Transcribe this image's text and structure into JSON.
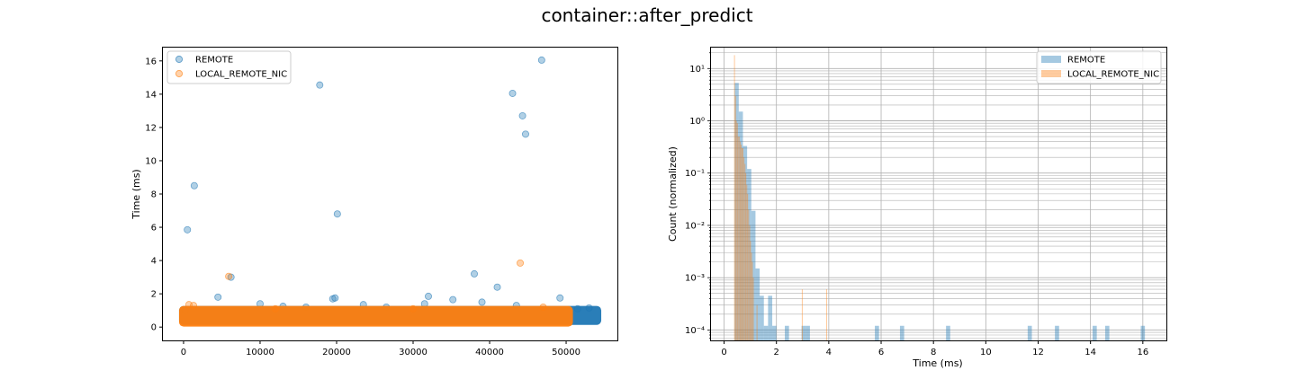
{
  "figure": {
    "suptitle": "container::after_predict"
  },
  "chart_data": [
    {
      "type": "scatter",
      "title": "",
      "xlabel": "",
      "ylabel": "Time (ms)",
      "xlim": [
        -2700,
        56700
      ],
      "ylim": [
        -0.8,
        16.8
      ],
      "xticks": [
        0,
        10000,
        20000,
        30000,
        40000,
        50000
      ],
      "xtick_labels": [
        "0",
        "10000",
        "20000",
        "30000",
        "40000",
        "50000"
      ],
      "yticks": [
        0,
        2,
        4,
        6,
        8,
        10,
        12,
        14,
        16
      ],
      "ytick_labels": [
        "0",
        "2",
        "4",
        "6",
        "8",
        "10",
        "12",
        "14",
        "16"
      ],
      "grid": false,
      "legend_position": "upper-left",
      "series": [
        {
          "name": "REMOTE",
          "color": "#1f77b4",
          "alpha": 0.3,
          "dense_band": {
            "x": [
              0,
              54000
            ],
            "y": [
              0.4,
              1.0
            ]
          },
          "points": [
            {
              "x": 200,
              "y": 1.0
            },
            {
              "x": 500,
              "y": 5.85
            },
            {
              "x": 1400,
              "y": 8.5
            },
            {
              "x": 4500,
              "y": 1.8
            },
            {
              "x": 6200,
              "y": 3.0
            },
            {
              "x": 10000,
              "y": 1.4
            },
            {
              "x": 13000,
              "y": 1.25
            },
            {
              "x": 16000,
              "y": 1.2
            },
            {
              "x": 17800,
              "y": 14.55
            },
            {
              "x": 19500,
              "y": 1.7
            },
            {
              "x": 19800,
              "y": 1.75
            },
            {
              "x": 20100,
              "y": 6.8
            },
            {
              "x": 23500,
              "y": 1.35
            },
            {
              "x": 26500,
              "y": 1.2
            },
            {
              "x": 31500,
              "y": 1.4
            },
            {
              "x": 32000,
              "y": 1.85
            },
            {
              "x": 35200,
              "y": 1.65
            },
            {
              "x": 38000,
              "y": 3.2
            },
            {
              "x": 39000,
              "y": 1.5
            },
            {
              "x": 41000,
              "y": 2.4
            },
            {
              "x": 43000,
              "y": 14.05
            },
            {
              "x": 43500,
              "y": 1.3
            },
            {
              "x": 44300,
              "y": 12.7
            },
            {
              "x": 44700,
              "y": 11.6
            },
            {
              "x": 46800,
              "y": 16.05
            },
            {
              "x": 49200,
              "y": 1.75
            },
            {
              "x": 51500,
              "y": 1.1
            },
            {
              "x": 53000,
              "y": 1.15
            }
          ]
        },
        {
          "name": "LOCAL_REMOTE_NIC",
          "color": "#ff7f0e",
          "alpha": 0.3,
          "dense_band": {
            "x": [
              0,
              50300
            ],
            "y": [
              0.3,
              1.0
            ]
          },
          "points": [
            {
              "x": 700,
              "y": 1.35
            },
            {
              "x": 1300,
              "y": 1.3
            },
            {
              "x": 5900,
              "y": 3.05
            },
            {
              "x": 12000,
              "y": 1.1
            },
            {
              "x": 30000,
              "y": 1.1
            },
            {
              "x": 44000,
              "y": 3.85
            },
            {
              "x": 47000,
              "y": 1.2
            }
          ]
        }
      ]
    },
    {
      "type": "bar",
      "subtype": "histogram",
      "title": "",
      "xlabel": "Time (ms)",
      "ylabel": "Count (normalized)",
      "xlim": [
        -0.5,
        16.9
      ],
      "ylim_log10": [
        -4.2,
        1.4
      ],
      "yscale": "log",
      "xticks": [
        0,
        2,
        4,
        6,
        8,
        10,
        12,
        14,
        16
      ],
      "xtick_labels": [
        "0",
        "2",
        "4",
        "6",
        "8",
        "10",
        "12",
        "14",
        "16"
      ],
      "yticks_log10": [
        -4,
        -3,
        -2,
        -1,
        0,
        1
      ],
      "ytick_labels": [
        "10⁻⁴",
        "10⁻³",
        "10⁻²",
        "10⁻¹",
        "10⁰",
        "10¹"
      ],
      "grid": true,
      "legend_position": "upper-right",
      "series": [
        {
          "name": "REMOTE",
          "color": "#1f77b4",
          "alpha": 0.4,
          "bin_width": 0.16,
          "bins": [
            {
              "x": 0.4,
              "y": 5.3
            },
            {
              "x": 0.56,
              "y": 1.5
            },
            {
              "x": 0.72,
              "y": 0.33
            },
            {
              "x": 0.88,
              "y": 0.12
            },
            {
              "x": 1.04,
              "y": 0.019
            },
            {
              "x": 1.2,
              "y": 0.0015
            },
            {
              "x": 1.36,
              "y": 0.00045
            },
            {
              "x": 1.52,
              "y": 0.00012
            },
            {
              "x": 1.68,
              "y": 0.00045
            },
            {
              "x": 1.84,
              "y": 0.00012
            },
            {
              "x": 2.32,
              "y": 0.00012
            },
            {
              "x": 2.96,
              "y": 0.00012
            },
            {
              "x": 3.12,
              "y": 0.00012
            },
            {
              "x": 5.76,
              "y": 0.00012
            },
            {
              "x": 6.72,
              "y": 0.00012
            },
            {
              "x": 8.48,
              "y": 0.00012
            },
            {
              "x": 11.6,
              "y": 0.00012
            },
            {
              "x": 12.64,
              "y": 0.00012
            },
            {
              "x": 14.08,
              "y": 0.00012
            },
            {
              "x": 14.56,
              "y": 0.00012
            },
            {
              "x": 15.92,
              "y": 0.00012
            }
          ]
        },
        {
          "name": "LOCAL_REMOTE_NIC",
          "color": "#ff7f0e",
          "alpha": 0.4,
          "bin_width": 0.036,
          "bins": [
            {
              "x": 0.38,
              "y": 18.0
            },
            {
              "x": 0.42,
              "y": 3.0
            },
            {
              "x": 0.45,
              "y": 1.0
            },
            {
              "x": 0.49,
              "y": 0.9
            },
            {
              "x": 0.52,
              "y": 0.5
            },
            {
              "x": 0.56,
              "y": 0.5
            },
            {
              "x": 0.6,
              "y": 0.4
            },
            {
              "x": 0.63,
              "y": 0.35
            },
            {
              "x": 0.67,
              "y": 0.3
            },
            {
              "x": 0.7,
              "y": 0.3
            },
            {
              "x": 0.74,
              "y": 0.2
            },
            {
              "x": 0.78,
              "y": 0.15
            },
            {
              "x": 0.81,
              "y": 0.1
            },
            {
              "x": 0.85,
              "y": 0.06
            },
            {
              "x": 0.88,
              "y": 0.04
            },
            {
              "x": 0.92,
              "y": 0.02
            },
            {
              "x": 0.96,
              "y": 0.01
            },
            {
              "x": 0.99,
              "y": 0.005
            },
            {
              "x": 1.03,
              "y": 0.003
            },
            {
              "x": 1.06,
              "y": 0.002
            },
            {
              "x": 1.1,
              "y": 0.001
            },
            {
              "x": 1.24,
              "y": 0.0003
            },
            {
              "x": 2.97,
              "y": 0.0006
            },
            {
              "x": 3.9,
              "y": 0.0006
            }
          ]
        }
      ]
    }
  ]
}
